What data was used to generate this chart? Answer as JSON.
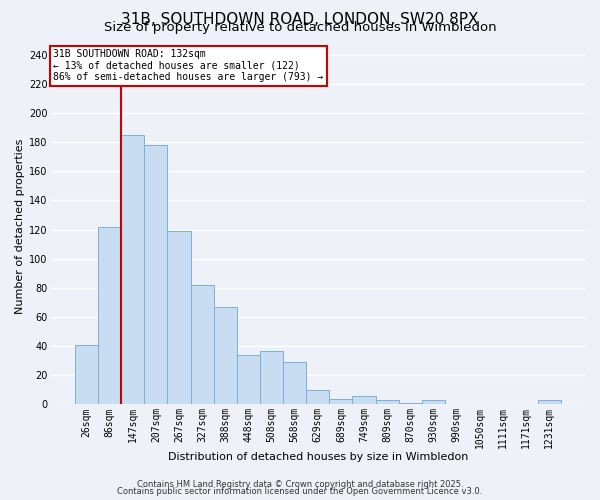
{
  "title": "31B, SOUTHDOWN ROAD, LONDON, SW20 8PX",
  "subtitle": "Size of property relative to detached houses in Wimbledon",
  "xlabel": "Distribution of detached houses by size in Wimbledon",
  "ylabel": "Number of detached properties",
  "bar_labels": [
    "26sqm",
    "86sqm",
    "147sqm",
    "207sqm",
    "267sqm",
    "327sqm",
    "388sqm",
    "448sqm",
    "508sqm",
    "568sqm",
    "629sqm",
    "689sqm",
    "749sqm",
    "809sqm",
    "870sqm",
    "930sqm",
    "990sqm",
    "1050sqm",
    "1111sqm",
    "1171sqm",
    "1231sqm"
  ],
  "bar_values": [
    41,
    122,
    185,
    178,
    119,
    82,
    67,
    34,
    37,
    29,
    10,
    4,
    6,
    3,
    1,
    3,
    0,
    0,
    0,
    0,
    3
  ],
  "bar_color": "#c9ddf2",
  "bar_edge_color": "#7ab0d8",
  "vline_x_idx": 2,
  "vline_color": "#cc0000",
  "ylim": [
    0,
    245
  ],
  "yticks": [
    0,
    20,
    40,
    60,
    80,
    100,
    120,
    140,
    160,
    180,
    200,
    220,
    240
  ],
  "annotation_text": "31B SOUTHDOWN ROAD: 132sqm\n← 13% of detached houses are smaller (122)\n86% of semi-detached houses are larger (793) →",
  "annotation_box_color": "#ffffff",
  "annotation_box_edge": "#cc0000",
  "footer1": "Contains HM Land Registry data © Crown copyright and database right 2025.",
  "footer2": "Contains public sector information licensed under the Open Government Licence v3.0.",
  "bg_color": "#eef2f8",
  "grid_color": "#ffffff",
  "title_fontsize": 11,
  "subtitle_fontsize": 9.5,
  "axis_label_fontsize": 8,
  "tick_fontsize": 7,
  "annotation_fontsize": 7,
  "footer_fontsize": 6
}
